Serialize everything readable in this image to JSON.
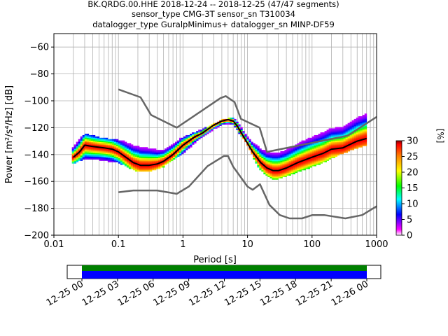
{
  "chart_data": {
    "type": "heatmap",
    "title": [
      "BK.QRDG.00.HHE   2018-12-24 -- 2018-12-25  (47/47 segments)",
      "sensor_type CMG-3T sensor_sn T310034",
      "datalogger_type GuralpMinimus+ datalogger_sn MINP-DF59"
    ],
    "xlabel": "Period [s]",
    "ylabel": "Power [m²/s⁴/Hz] [dB]",
    "x_scale": "log",
    "xlim": [
      0.01,
      1000
    ],
    "ylim": [
      -200,
      -50
    ],
    "x_tick_labels": [
      "0.01",
      "0.1",
      "1",
      "10",
      "100",
      "1000"
    ],
    "y_ticks": [
      -60,
      -80,
      -100,
      -120,
      -140,
      -160,
      -180,
      -200
    ],
    "grid": true,
    "colorbar": {
      "label": "[%]",
      "range": [
        0,
        30
      ],
      "ticks": [
        0,
        5,
        10,
        15,
        20,
        25,
        30
      ]
    },
    "noise_model_high": {
      "period": [
        0.1,
        0.22,
        0.32,
        0.8,
        3.8,
        4.6,
        6.3,
        7.9,
        15.4,
        20,
        354.8,
        1000
      ],
      "db": [
        -91.5,
        -97.4,
        -110.5,
        -120,
        -98,
        -96.5,
        -101,
        -113.5,
        -120,
        -138,
        -126,
        -112
      ]
    },
    "noise_model_low": {
      "period": [
        0.1,
        0.17,
        0.4,
        0.8,
        1.24,
        2.4,
        4.3,
        5,
        6,
        10,
        12,
        15.6,
        21.9,
        31.6,
        45,
        70,
        101,
        154,
        328,
        600,
        1000
      ],
      "db": [
        -168,
        -166.7,
        -166.7,
        -169.2,
        -163.7,
        -148.6,
        -141.1,
        -141.1,
        -149,
        -163.8,
        -166.2,
        -162.1,
        -177.5,
        -185,
        -187.5,
        -187.5,
        -185,
        -185,
        -187.5,
        -185,
        -178.5
      ]
    },
    "mode_curve": {
      "period": [
        0.02,
        0.025,
        0.03,
        0.04,
        0.06,
        0.08,
        0.1,
        0.13,
        0.17,
        0.22,
        0.3,
        0.4,
        0.5,
        0.7,
        1,
        1.5,
        2,
        3,
        4,
        5,
        6,
        7,
        9,
        12,
        16,
        20,
        25,
        30,
        40,
        60,
        100,
        150,
        200,
        300,
        500,
        700
      ],
      "db": [
        -142,
        -138,
        -133,
        -134,
        -135,
        -136,
        -138,
        -142,
        -146,
        -148,
        -148,
        -147,
        -145,
        -140,
        -133,
        -127,
        -124,
        -118,
        -115,
        -114,
        -115,
        -119,
        -128,
        -138,
        -146,
        -150,
        -152,
        -152,
        -150,
        -146,
        -142,
        -139,
        -136,
        -135,
        -130,
        -128
      ]
    },
    "psd_spread": {
      "period": [
        0.02,
        0.03,
        0.05,
        0.1,
        0.2,
        0.3,
        0.5,
        1,
        2,
        4,
        6,
        10,
        15,
        25,
        40,
        80,
        150,
        300,
        700
      ],
      "upper_db": [
        -135,
        -125,
        -128,
        -130,
        -132,
        -133,
        -135,
        -128,
        -122,
        -115,
        -113,
        -125,
        -135,
        -138,
        -135,
        -128,
        -122,
        -115,
        -105
      ],
      "lower_db": [
        -146,
        -142,
        -143,
        -145,
        -152,
        -152,
        -148,
        -138,
        -126,
        -118,
        -117,
        -132,
        -150,
        -158,
        -155,
        -150,
        -145,
        -138,
        -132
      ]
    },
    "timeline": {
      "tick_labels": [
        "12-25 00",
        "12-25 03",
        "12-25 06",
        "12-25 09",
        "12-25 12",
        "12-25 15",
        "12-25 18",
        "12-25 21",
        "12-26 00"
      ],
      "coverage_start_hours": 0,
      "coverage_end_hours": 24,
      "bar_colors": [
        "#008000",
        "#0000ff"
      ]
    }
  }
}
